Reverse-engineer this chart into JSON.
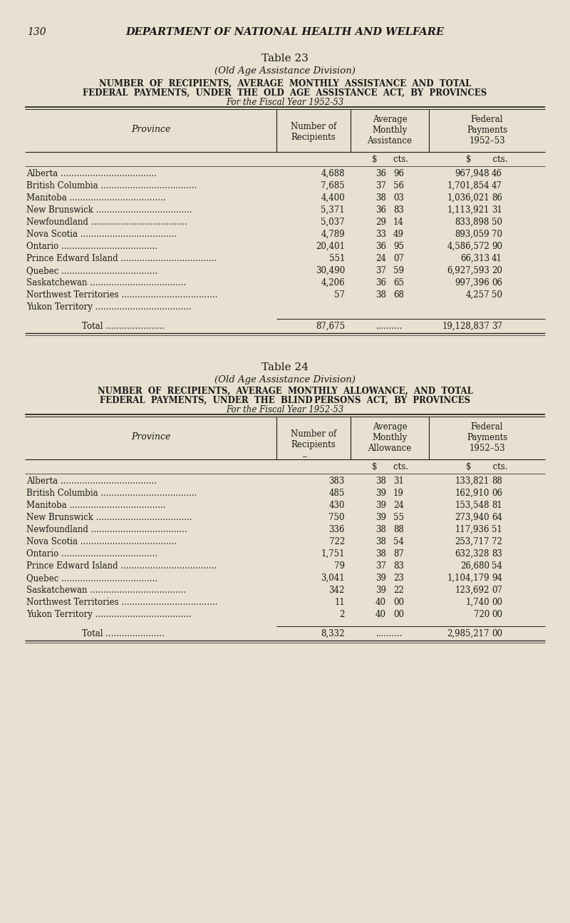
{
  "bg_color": "#e8e0d0",
  "text_color": "#1a1a1a",
  "page_number": "130",
  "header": "DEPARTMENT OF NATIONAL HEALTH AND WELFARE",
  "table23": {
    "title": "Table 23",
    "subtitle": "(Old Age Assistance Division)",
    "desc1": "NUMBER  OF  RECIPIENTS,  AVERAGE  MONTHLY  ASSISTANCE  AND  TOTAL",
    "desc2": "FEDERAL  PAYMENTS,  UNDER  THE  OLD  AGE  ASSISTANCE  ACT,  BY  PROVINCES",
    "desc3": "For the Fiscal Year 1952-53",
    "hdr_col1": "Province",
    "hdr_col2": "Number of\nRecipients",
    "hdr_col3": "Average\nMonthly\nAssistance",
    "hdr_col4": "Federal\nPayments\n1952–53",
    "provinces": [
      "Alberta",
      "British Columbia",
      "Manitoba",
      "New Brunswick",
      "Newfoundland",
      "Nova Scotia",
      "Ontario",
      "Prince Edward Island",
      "Quebec",
      "Saskatchewan",
      "Northwest Territories",
      "Yukon Territory"
    ],
    "recipients": [
      "4,688",
      "7,685",
      "4,400",
      "5,371",
      "5,037",
      "4,789",
      "20,401",
      "551",
      "30,490",
      "4,206",
      "57",
      ""
    ],
    "avg_dollar": [
      "36",
      "37",
      "38",
      "36",
      "29",
      "33",
      "36",
      "24",
      "37",
      "36",
      "38",
      ""
    ],
    "avg_cts": [
      "96",
      "56",
      "03",
      "83",
      "14",
      "49",
      "95",
      "07",
      "59",
      "65",
      "68",
      ""
    ],
    "fed_dollar": [
      "967,948",
      "1,701,854",
      "1,036,021",
      "1,113,921",
      "833,898",
      "893,059",
      "4,586,572",
      "66,313",
      "6,927,593",
      "997,396",
      "4,257",
      ""
    ],
    "fed_cts": [
      "46",
      "47",
      "86",
      "31",
      "50",
      "70",
      "90",
      "41",
      "20",
      "06",
      "50",
      ""
    ],
    "total_recipients": "87,675",
    "total_fed_dollar": "19,128,837",
    "total_fed_cts": "37"
  },
  "table24": {
    "title": "Table 24",
    "subtitle": "(Old Age Assistance Division)",
    "desc1": "NUMBER  OF  RECIPIENTS,  AVERAGE  MONTHLY  ALLOWANCE,  AND  TOTAL",
    "desc2": "FEDERAL  PAYMENTS,  UNDER  THE  BLIND PERSONS  ACT,  BY  PROVINCES",
    "desc3": "For the Fiscal Year 1952-53",
    "hdr_col1": "Province",
    "hdr_col2": "Number of\nRecipients",
    "hdr_col3": "Average\nMonthly\nAllowance",
    "hdr_col4": "Federal\nPayments\n1952–53",
    "provinces": [
      "Alberta",
      "British Columbia",
      "Manitoba",
      "New Brunswick",
      "Newfoundland",
      "Nova Scotia",
      "Ontario",
      "Prince Edward Island",
      "Quebec",
      "Saskatchewan",
      "Northwest Territories",
      "Yukon Territory"
    ],
    "recipients": [
      "383",
      "485",
      "430",
      "750",
      "336",
      "722",
      "1,751",
      "79",
      "3,041",
      "342",
      "11",
      "2"
    ],
    "avg_dollar": [
      "38",
      "39",
      "39",
      "39",
      "38",
      "38",
      "38",
      "37",
      "39",
      "39",
      "40",
      "40"
    ],
    "avg_cts": [
      "31",
      "19",
      "24",
      "55",
      "88",
      "54",
      "87",
      "83",
      "23",
      "22",
      "00",
      "00"
    ],
    "fed_dollar": [
      "133,821",
      "162,910",
      "153,548",
      "273,940",
      "117,936",
      "253,717",
      "632,328",
      "26,680",
      "1,104,179",
      "123,692",
      "1,740",
      "720"
    ],
    "fed_cts": [
      "88",
      "06",
      "81",
      "64",
      "51",
      "72",
      "83",
      "54",
      "94",
      "07",
      "00",
      "00"
    ],
    "total_recipients": "8,332",
    "total_fed_dollar": "2,985,217",
    "total_fed_cts": "00"
  }
}
